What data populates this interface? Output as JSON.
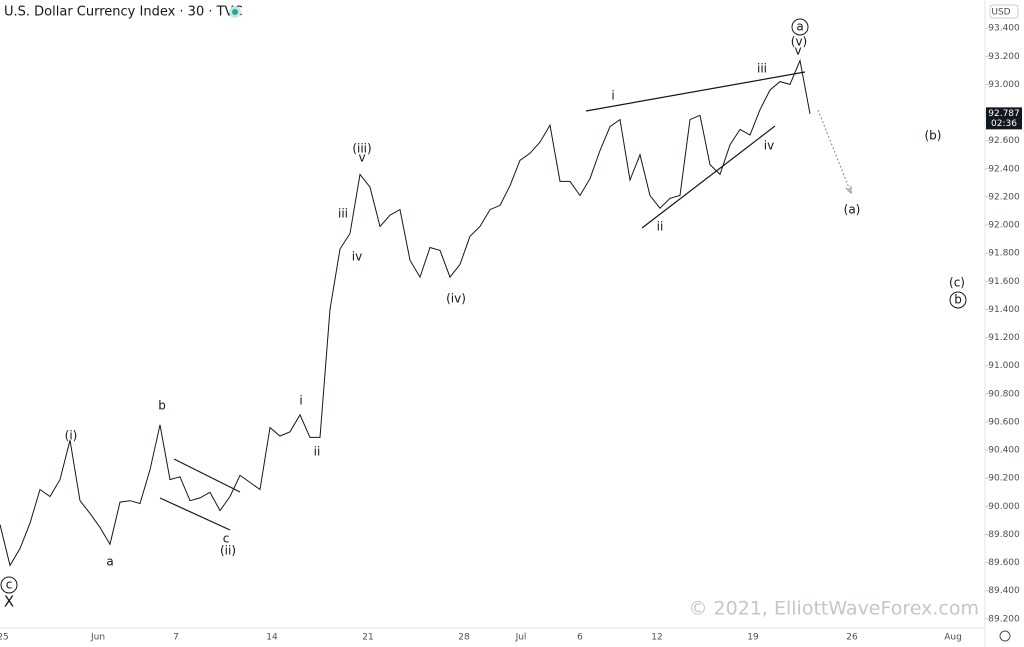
{
  "chart_data": {
    "type": "line",
    "title": "U.S. Dollar Currency Index · 30 · TVC",
    "currency": "USD",
    "watermark": "© 2021, ElliottWaveForex.com",
    "color": "#131722",
    "last_price": 92.787,
    "countdown": "02:36",
    "ylim": [
      89.0,
      93.6
    ],
    "yticks": [
      {
        "value": 89.2,
        "label": "89.200"
      },
      {
        "value": 89.4,
        "label": "89.400"
      },
      {
        "value": 89.6,
        "label": "89.600"
      },
      {
        "value": 89.8,
        "label": "89.800"
      },
      {
        "value": 90,
        "label": "90.000"
      },
      {
        "value": 90.2,
        "label": "90.200"
      },
      {
        "value": 90.4,
        "label": "90.400"
      },
      {
        "value": 90.6,
        "label": "90.600"
      },
      {
        "value": 90.8,
        "label": "90.800"
      },
      {
        "value": 91,
        "label": "91.000"
      },
      {
        "value": 91.2,
        "label": "91.200"
      },
      {
        "value": 91.4,
        "label": "91.400"
      },
      {
        "value": 91.6,
        "label": "91.600"
      },
      {
        "value": 91.8,
        "label": "91.800"
      },
      {
        "value": 92,
        "label": "92.000"
      },
      {
        "value": 92.2,
        "label": "92.200"
      },
      {
        "value": 92.4,
        "label": "92.400"
      },
      {
        "value": 92.6,
        "label": "92.600"
      },
      {
        "value": 92.8,
        "label": "92.800"
      },
      {
        "value": 93,
        "label": "93.000"
      },
      {
        "value": 93.2,
        "label": "93.200"
      },
      {
        "value": 93.4,
        "label": "93.400"
      }
    ],
    "x_labels": [
      "25",
      "Jun",
      "7",
      "14",
      "21",
      "28",
      "Jul",
      "6",
      "12",
      "19",
      "26",
      "Aug"
    ],
    "values": [
      89.87,
      89.58,
      89.7,
      89.88,
      90.12,
      90.07,
      90.19,
      90.47,
      90.04,
      89.95,
      89.85,
      89.73,
      90.03,
      90.04,
      90.02,
      90.26,
      90.58,
      90.19,
      90.21,
      90.04,
      90.06,
      90.1,
      89.97,
      90.07,
      90.22,
      90.17,
      90.12,
      90.56,
      90.5,
      90.53,
      90.65,
      90.49,
      90.49,
      91.4,
      91.83,
      91.94,
      92.36,
      92.27,
      91.99,
      92.07,
      92.11,
      91.75,
      91.63,
      91.84,
      91.82,
      91.63,
      91.72,
      91.92,
      91.99,
      92.11,
      92.14,
      92.28,
      92.46,
      92.51,
      92.59,
      92.71,
      92.31,
      92.31,
      92.21,
      92.33,
      92.53,
      92.7,
      92.75,
      92.32,
      92.5,
      92.21,
      92.12,
      92.19,
      92.21,
      92.75,
      92.78,
      92.43,
      92.36,
      92.57,
      92.68,
      92.64,
      92.82,
      92.96,
      93.02,
      93.0,
      93.17,
      92.79
    ],
    "annotations": [
      {
        "text": "c",
        "circled": true
      },
      {
        "text": "X"
      },
      {
        "text": "(i)"
      },
      {
        "text": "a"
      },
      {
        "text": "b"
      },
      {
        "text": "c"
      },
      {
        "text": "(ii)"
      },
      {
        "text": "i"
      },
      {
        "text": "ii"
      },
      {
        "text": "iii"
      },
      {
        "text": "iv"
      },
      {
        "text": "(iii)"
      },
      {
        "text": "v"
      },
      {
        "text": "(iv)"
      },
      {
        "text": "i"
      },
      {
        "text": "ii"
      },
      {
        "text": "iii"
      },
      {
        "text": "iv"
      },
      {
        "text": "v"
      },
      {
        "text": "(v)"
      },
      {
        "text": "a",
        "circled": true
      },
      {
        "text": "(b)"
      },
      {
        "text": "(a)"
      },
      {
        "text": "(c)"
      },
      {
        "text": "b",
        "circled": true
      }
    ]
  }
}
